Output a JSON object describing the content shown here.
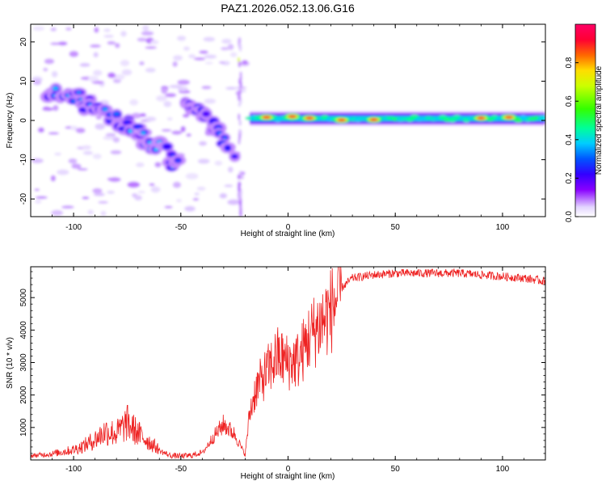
{
  "title": "PAZ1.2026.052.13.06.G16",
  "chart_data": [
    {
      "type": "heatmap",
      "xlabel": "Height of straight line (km)",
      "ylabel": "Frequency (Hz)",
      "xlim": [
        -120,
        120
      ],
      "ylim": [
        -24.5,
        24.5
      ],
      "xticks": [
        -100,
        -50,
        0,
        50,
        100
      ],
      "yticks": [
        -20,
        -10,
        0,
        10,
        20
      ],
      "colorbar": {
        "label": "Normalized spectral amplitude",
        "range": [
          0,
          1
        ],
        "ticks": [
          "0.0",
          "0.2",
          "0.4",
          "0.6",
          "0.8"
        ],
        "colormap": "rainbow (white/lavender → violet → blue → cyan → green → yellow → red → magenta)"
      },
      "features": [
        {
          "description": "diffuse scattered energy band",
          "x": [
            -118,
            -20
          ],
          "frequency": [
            -24,
            24
          ],
          "level": 0.05
        },
        {
          "description": "descending tilted ridge",
          "points": [
            [
              -112,
              7.5
            ],
            [
              -100,
              6.5
            ],
            [
              -90,
              3
            ],
            [
              -80,
              0.5
            ],
            [
              -70,
              -3
            ],
            [
              -60,
              -7
            ],
            [
              -50,
              -12.5
            ]
          ],
          "level": 0.35
        },
        {
          "description": "secondary ridge",
          "points": [
            [
              -48,
              5
            ],
            [
              -40,
              2
            ],
            [
              -32,
              -3
            ],
            [
              -27,
              -7.5
            ],
            [
              -25,
              -12
            ]
          ],
          "level": 0.3
        },
        {
          "description": "stable carrier line near 0 Hz",
          "x": [
            -18,
            120
          ],
          "frequency": [
            -0.5,
            1.5
          ],
          "level": 0.45
        },
        {
          "description": "carrier peaks",
          "points": [
            [
              -10,
              0.8
            ],
            [
              2,
              1
            ],
            [
              10,
              0.6
            ],
            [
              25,
              0.1
            ],
            [
              40,
              0.2
            ],
            [
              90,
              0.6
            ],
            [
              103,
              0.8
            ]
          ],
          "level": 0.95
        }
      ]
    },
    {
      "type": "line",
      "xlabel": "Height of straight line (km)",
      "ylabel": "SNR (10 * v/v)",
      "xlim": [
        -120,
        120
      ],
      "ylim": [
        0,
        5950
      ],
      "xticks": [
        -100,
        -50,
        0,
        50,
        100
      ],
      "yticks": [
        1000,
        2000,
        3000,
        4000,
        5000
      ],
      "series": [
        {
          "color": "#ee2222",
          "x": [
            -120,
            -110,
            -100,
            -95,
            -90,
            -85,
            -80,
            -75,
            -70,
            -65,
            -60,
            -55,
            -50,
            -45,
            -40,
            -35,
            -30,
            -25,
            -20,
            -18,
            -15,
            -10,
            -5,
            0,
            5,
            10,
            15,
            20,
            25,
            30,
            40,
            50,
            60,
            70,
            80,
            90,
            100,
            110,
            120
          ],
          "y": [
            100,
            150,
            250,
            350,
            500,
            700,
            650,
            900,
            650,
            450,
            250,
            100,
            80,
            100,
            200,
            700,
            1100,
            800,
            150,
            1400,
            2200,
            2700,
            3200,
            3000,
            3100,
            3800,
            4200,
            4600,
            5300,
            5600,
            5700,
            5750,
            5750,
            5750,
            5750,
            5700,
            5650,
            5600,
            5500
          ]
        }
      ]
    }
  ]
}
